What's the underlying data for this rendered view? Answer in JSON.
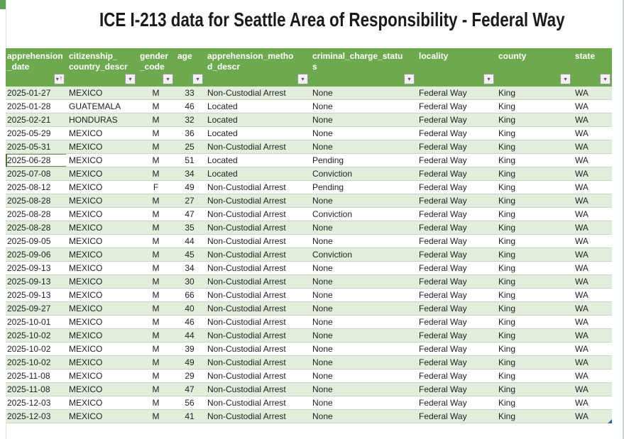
{
  "title": "ICE I-213 data for Seattle Area of Responsibility - Federal Way",
  "icons": {
    "filter_dropdown": "▾",
    "sort_ascending": "↑"
  },
  "colors": {
    "header_bg": "#6DA94E",
    "band_green": "#E2EEDC",
    "band_white": "#FFFFFF",
    "header_text": "#FFFFFF",
    "grid_line": "#C9D4C9",
    "selection_border": "#45722C",
    "resize_handle": "#3A66A8"
  },
  "sheet": {
    "columns": [
      {
        "id": "apprehension_date",
        "label": "apprehension\n_date",
        "sorted": true
      },
      {
        "id": "citizenship_country_descr",
        "label": "citizenship_\ncountry_descr",
        "sorted": false
      },
      {
        "id": "gender_code",
        "label": "gender\n_code",
        "sorted": false
      },
      {
        "id": "age",
        "label": "age",
        "sorted": false
      },
      {
        "id": "apprehension_method_descr",
        "label": "apprehension_metho\nd_descr",
        "sorted": false
      },
      {
        "id": "criminal_charge_status",
        "label": "criminal_charge_statu\ns",
        "sorted": false
      },
      {
        "id": "locality",
        "label": "locality",
        "sorted": false
      },
      {
        "id": "county",
        "label": "county",
        "sorted": false
      },
      {
        "id": "state",
        "label": "state",
        "sorted": false
      }
    ],
    "selected_cell": {
      "row_index": 5,
      "col_index": 0
    },
    "rows": [
      [
        "2025-01-27",
        "MEXICO",
        "M",
        "33",
        "Non-Custodial Arrest",
        "None",
        "Federal Way",
        "King",
        "WA"
      ],
      [
        "2025-01-28",
        "GUATEMALA",
        "M",
        "46",
        "Located",
        "None",
        "Federal Way",
        "King",
        "WA"
      ],
      [
        "2025-02-21",
        "HONDURAS",
        "M",
        "32",
        "Located",
        "None",
        "Federal Way",
        "King",
        "WA"
      ],
      [
        "2025-05-29",
        "MEXICO",
        "M",
        "36",
        "Located",
        "None",
        "Federal Way",
        "King",
        "WA"
      ],
      [
        "2025-05-31",
        "MEXICO",
        "M",
        "25",
        "Non-Custodial Arrest",
        "None",
        "Federal Way",
        "King",
        "WA"
      ],
      [
        "2025-06-28",
        "MEXICO",
        "M",
        "51",
        "Located",
        "Pending",
        "Federal Way",
        "King",
        "WA"
      ],
      [
        "2025-07-08",
        "MEXICO",
        "M",
        "34",
        "Located",
        "Conviction",
        "Federal Way",
        "King",
        "WA"
      ],
      [
        "2025-08-12",
        "MEXICO",
        "F",
        "49",
        "Non-Custodial Arrest",
        "Pending",
        "Federal Way",
        "King",
        "WA"
      ],
      [
        "2025-08-28",
        "MEXICO",
        "M",
        "27",
        "Non-Custodial Arrest",
        "None",
        "Federal Way",
        "King",
        "WA"
      ],
      [
        "2025-08-28",
        "MEXICO",
        "M",
        "47",
        "Non-Custodial Arrest",
        "Conviction",
        "Federal Way",
        "King",
        "WA"
      ],
      [
        "2025-08-28",
        "MEXICO",
        "M",
        "35",
        "Non-Custodial Arrest",
        "None",
        "Federal Way",
        "King",
        "WA"
      ],
      [
        "2025-09-05",
        "MEXICO",
        "M",
        "44",
        "Non-Custodial Arrest",
        "None",
        "Federal Way",
        "King",
        "WA"
      ],
      [
        "2025-09-06",
        "MEXICO",
        "M",
        "45",
        "Non-Custodial Arrest",
        "Conviction",
        "Federal Way",
        "King",
        "WA"
      ],
      [
        "2025-09-13",
        "MEXICO",
        "M",
        "34",
        "Non-Custodial Arrest",
        "None",
        "Federal Way",
        "King",
        "WA"
      ],
      [
        "2025-09-13",
        "MEXICO",
        "M",
        "30",
        "Non-Custodial Arrest",
        "None",
        "Federal Way",
        "King",
        "WA"
      ],
      [
        "2025-09-13",
        "MEXICO",
        "M",
        "66",
        "Non-Custodial Arrest",
        "None",
        "Federal Way",
        "King",
        "WA"
      ],
      [
        "2025-09-27",
        "MEXICO",
        "M",
        "40",
        "Non-Custodial Arrest",
        "None",
        "Federal Way",
        "King",
        "WA"
      ],
      [
        "2025-10-01",
        "MEXICO",
        "M",
        "46",
        "Non-Custodial Arrest",
        "None",
        "Federal Way",
        "King",
        "WA"
      ],
      [
        "2025-10-02",
        "MEXICO",
        "M",
        "44",
        "Non-Custodial Arrest",
        "None",
        "Federal Way",
        "King",
        "WA"
      ],
      [
        "2025-10-02",
        "MEXICO",
        "M",
        "39",
        "Non-Custodial Arrest",
        "None",
        "Federal Way",
        "King",
        "WA"
      ],
      [
        "2025-10-02",
        "MEXICO",
        "M",
        "49",
        "Non-Custodial Arrest",
        "None",
        "Federal Way",
        "King",
        "WA"
      ],
      [
        "2025-11-08",
        "MEXICO",
        "M",
        "29",
        "Non-Custodial Arrest",
        "None",
        "Federal Way",
        "King",
        "WA"
      ],
      [
        "2025-11-08",
        "MEXICO",
        "M",
        "47",
        "Non-Custodial Arrest",
        "None",
        "Federal Way",
        "King",
        "WA"
      ],
      [
        "2025-12-03",
        "MEXICO",
        "M",
        "56",
        "Non-Custodial Arrest",
        "None",
        "Federal Way",
        "King",
        "WA"
      ],
      [
        "2025-12-03",
        "MEXICO",
        "M",
        "41",
        "Non-Custodial Arrest",
        "None",
        "Federal Way",
        "King",
        "WA"
      ]
    ]
  }
}
